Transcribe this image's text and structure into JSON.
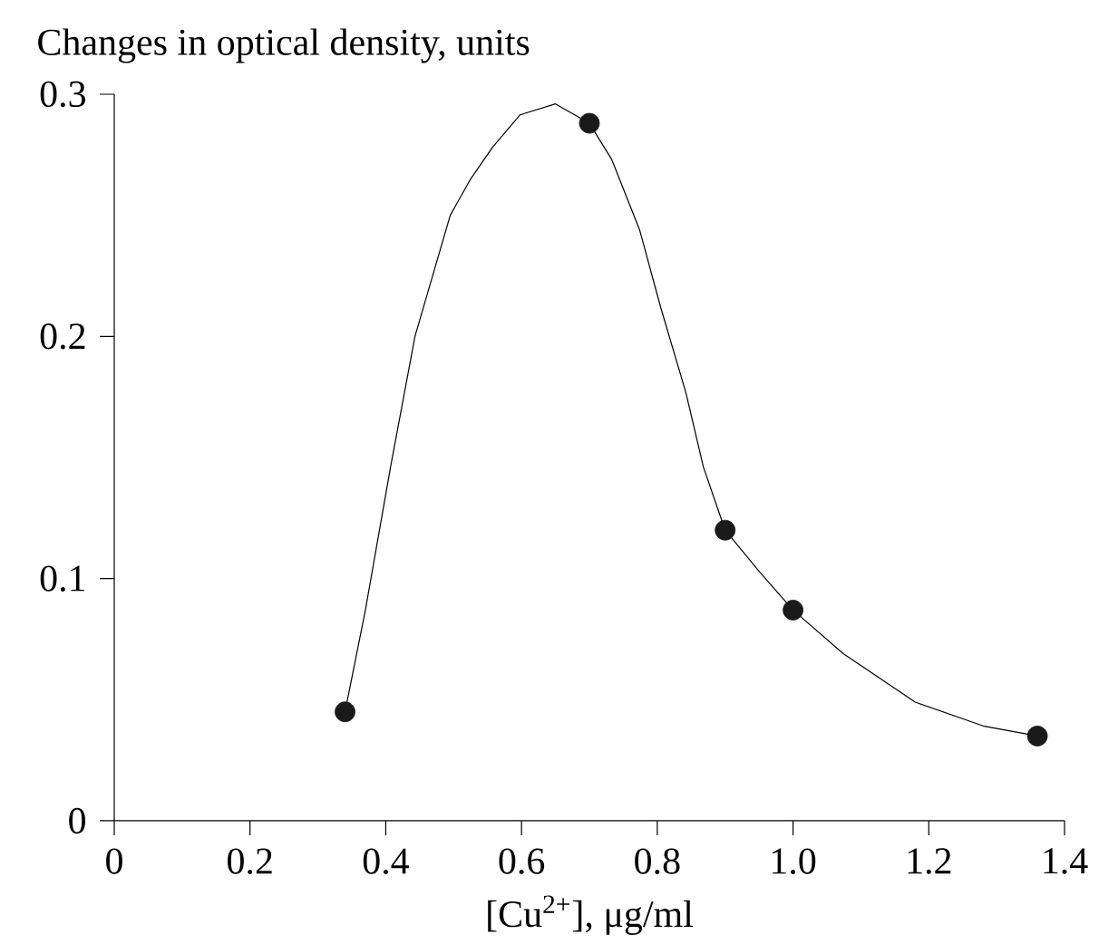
{
  "chart_data": {
    "type": "line",
    "xlabel": "[Cu$^{2+}$], μg/ml",
    "ylabel": "Changes in optical density, units",
    "xlim": [
      0,
      1.4
    ],
    "ylim": [
      0,
      0.3
    ],
    "xticks": [
      0,
      0.2,
      0.4,
      0.6,
      0.8,
      {
        "value": 1.0,
        "label": "1.0"
      },
      1.2,
      1.4
    ],
    "yticks": [
      0,
      0.1,
      0.2,
      0.3
    ],
    "series": [
      {
        "color": "#000000",
        "marker": "none",
        "line_style": "solid",
        "x": [
          0.34,
          0.37,
          0.407,
          0.443,
          0.495,
          0.525,
          0.557,
          0.598,
          0.65,
          0.7,
          0.733,
          0.774,
          0.805,
          0.842,
          0.868,
          0.9,
          0.95,
          1.0,
          1.074,
          1.18,
          1.282,
          1.36
        ],
        "values": [
          0.045,
          0.087,
          0.146,
          0.2,
          0.25,
          0.265,
          0.278,
          0.2915,
          0.296,
          0.288,
          0.273,
          0.244,
          0.212,
          0.177,
          0.146,
          0.12,
          0.103,
          0.087,
          0.069,
          0.049,
          0.039,
          0.035
        ]
      },
      {
        "type": "scatter",
        "color": "#1a1a1a",
        "marker": "circle",
        "x": [
          0.34,
          0.7,
          0.9,
          1.0,
          1.36
        ],
        "values": [
          0.045,
          0.288,
          0.12,
          0.087,
          0.035
        ]
      }
    ]
  }
}
